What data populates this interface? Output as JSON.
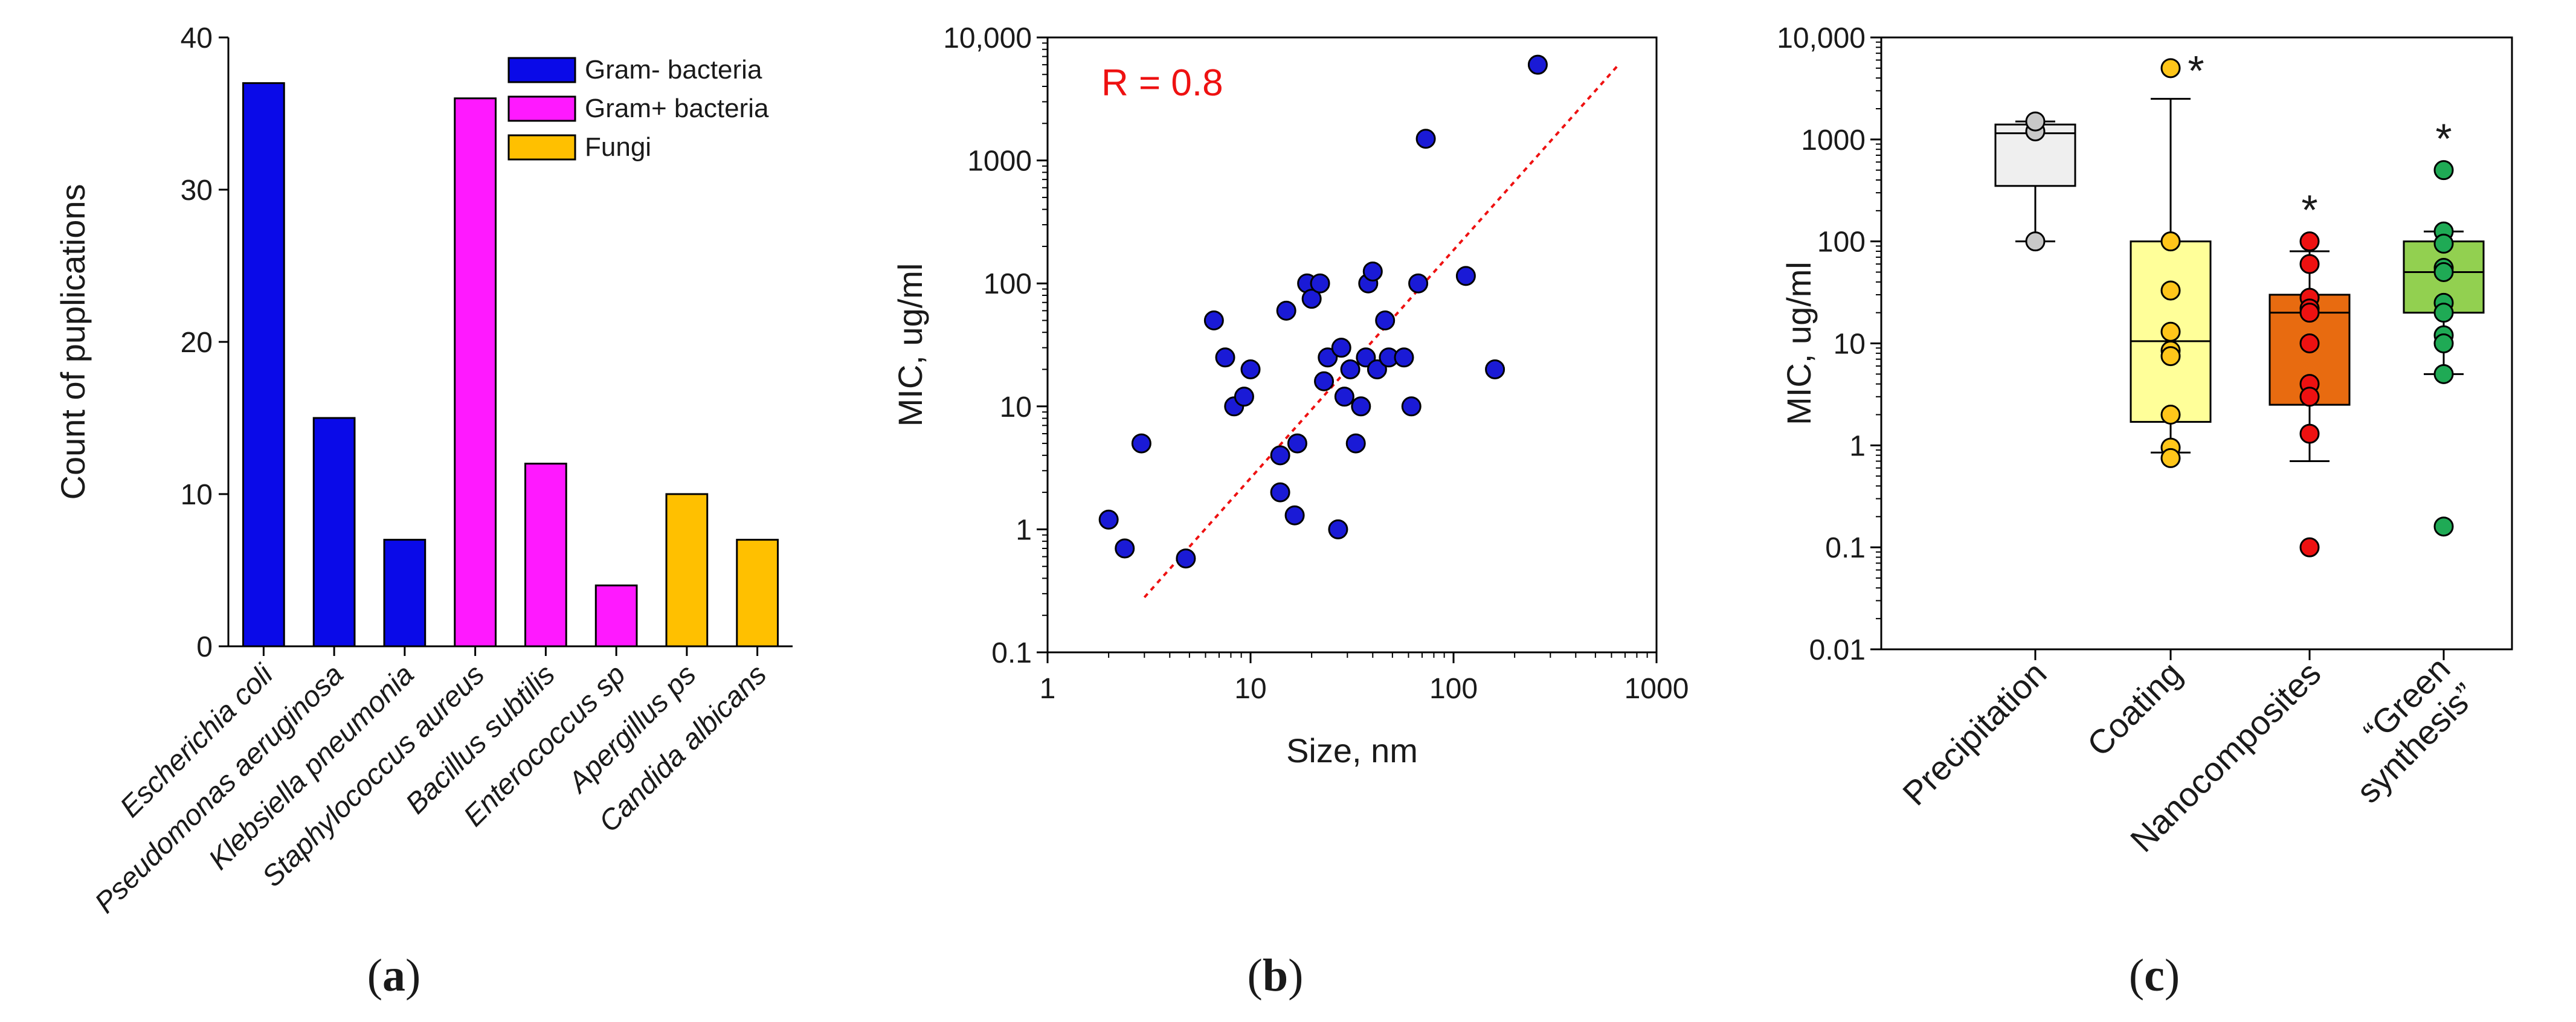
{
  "colors": {
    "gram_neg": "#0a0ae8",
    "gram_pos": "#ff19ff",
    "fungi": "#ffc000",
    "scatter_point": "#1a1ad6",
    "trend_line": "#ee1111",
    "precipitation_box": "#efefef",
    "precipitation_point": "#c8c8c8",
    "coating_box": "#ffff99",
    "coating_point": "#ffc61a",
    "nanocomposites_box": "#e86b10",
    "nanocomposites_point": "#ee1111",
    "green_box": "#92d050",
    "green_point": "#1faa55"
  },
  "chart_data": [
    {
      "type": "bar",
      "panel": "a",
      "ylabel": "Count of puplications",
      "xlabel": "",
      "ylim": [
        0,
        40
      ],
      "yticks": [
        "0",
        "10",
        "20",
        "30",
        "40"
      ],
      "categories": [
        "Escherichia coli",
        "Pseudomonas aeruginosa",
        "Klebsiella pneumonia",
        "Staphylococcus aureus",
        "Bacillus subtilis",
        "Enterococcus sp",
        "Apergillus ps",
        "Candida albicans"
      ],
      "values": [
        37,
        15,
        7,
        36,
        12,
        4,
        10,
        7
      ],
      "groups": [
        "gram_neg",
        "gram_neg",
        "gram_neg",
        "gram_pos",
        "gram_pos",
        "gram_pos",
        "fungi",
        "fungi"
      ],
      "legend": [
        {
          "key": "gram_neg",
          "label": "Gram- bacteria"
        },
        {
          "key": "gram_pos",
          "label": "Gram+ bacteria"
        },
        {
          "key": "fungi",
          "label": "Fungi"
        }
      ],
      "legend_position": "top-right"
    },
    {
      "type": "scatter",
      "panel": "b",
      "xlabel": "Size, nm",
      "ylabel": "MIC, ug/ml",
      "xscale": "log",
      "yscale": "log",
      "xlim": [
        1,
        1000
      ],
      "ylim": [
        0.1,
        10000
      ],
      "xticks": [
        "1",
        "10",
        "100",
        "1000"
      ],
      "yticks": [
        "0.1",
        "1",
        "10",
        "100",
        "1000",
        "10,000"
      ],
      "annotation": "R = 0.8",
      "trendline": {
        "x": [
          3,
          650
        ],
        "y": [
          0.28,
          6000
        ]
      },
      "points": [
        {
          "x": 2,
          "y": 1.2
        },
        {
          "x": 2.4,
          "y": 0.7
        },
        {
          "x": 2.9,
          "y": 5
        },
        {
          "x": 4.8,
          "y": 0.58
        },
        {
          "x": 6.6,
          "y": 50
        },
        {
          "x": 7.5,
          "y": 25
        },
        {
          "x": 8.3,
          "y": 10
        },
        {
          "x": 9.3,
          "y": 12
        },
        {
          "x": 10,
          "y": 20
        },
        {
          "x": 14,
          "y": 4
        },
        {
          "x": 14,
          "y": 2
        },
        {
          "x": 15,
          "y": 60
        },
        {
          "x": 16.5,
          "y": 1.3
        },
        {
          "x": 17,
          "y": 5
        },
        {
          "x": 19,
          "y": 100
        },
        {
          "x": 20,
          "y": 75
        },
        {
          "x": 22,
          "y": 100
        },
        {
          "x": 23,
          "y": 16
        },
        {
          "x": 24,
          "y": 25
        },
        {
          "x": 27,
          "y": 1
        },
        {
          "x": 28,
          "y": 30
        },
        {
          "x": 29,
          "y": 12
        },
        {
          "x": 31,
          "y": 20
        },
        {
          "x": 33,
          "y": 5
        },
        {
          "x": 35,
          "y": 10
        },
        {
          "x": 37,
          "y": 25
        },
        {
          "x": 38,
          "y": 100
        },
        {
          "x": 40,
          "y": 125
        },
        {
          "x": 42,
          "y": 20
        },
        {
          "x": 46,
          "y": 50
        },
        {
          "x": 48,
          "y": 25
        },
        {
          "x": 57,
          "y": 25
        },
        {
          "x": 62,
          "y": 10
        },
        {
          "x": 67,
          "y": 100
        },
        {
          "x": 73,
          "y": 1500
        },
        {
          "x": 115,
          "y": 115
        },
        {
          "x": 160,
          "y": 20
        },
        {
          "x": 260,
          "y": 6000
        }
      ]
    },
    {
      "type": "box",
      "panel": "c",
      "ylabel": "MIC, ug/ml",
      "yscale": "log",
      "ylim": [
        0.01,
        10000
      ],
      "yticks": [
        "0.01",
        "0.1",
        "1",
        "10",
        "100",
        "1000",
        "10,000"
      ],
      "categories": [
        "Precipitation",
        "Coating",
        "Nanocomposites",
        "“Green synthesis”"
      ],
      "boxes": [
        {
          "key": "precipitation",
          "whisker_low": 100,
          "q1": 350,
          "median": 1150,
          "q3": 1400,
          "whisker_high": 1500,
          "points": [
            1200,
            1500,
            100
          ],
          "significance": ""
        },
        {
          "key": "coating",
          "whisker_low": 0.85,
          "q1": 1.7,
          "median": 10.5,
          "q3": 100,
          "whisker_high": 2500,
          "points": [
            5000,
            100,
            33,
            13,
            8.5,
            7.5,
            2,
            0.95,
            0.75
          ],
          "significance": "*"
        },
        {
          "key": "nanocomposites",
          "whisker_low": 0.7,
          "q1": 2.5,
          "median": 20,
          "q3": 30,
          "whisker_high": 80,
          "points": [
            100,
            60,
            28,
            22,
            20,
            10,
            4,
            3,
            1.3,
            0.1
          ],
          "significance": "*"
        },
        {
          "key": "green",
          "whisker_low": 5,
          "q1": 20,
          "median": 50,
          "q3": 100,
          "whisker_high": 125,
          "points": [
            500,
            125,
            95,
            55,
            50,
            25,
            20,
            12,
            10,
            5,
            0.16
          ],
          "significance": "*"
        }
      ]
    }
  ],
  "panel_labels": [
    "(a)",
    "(b)",
    "(c)"
  ]
}
